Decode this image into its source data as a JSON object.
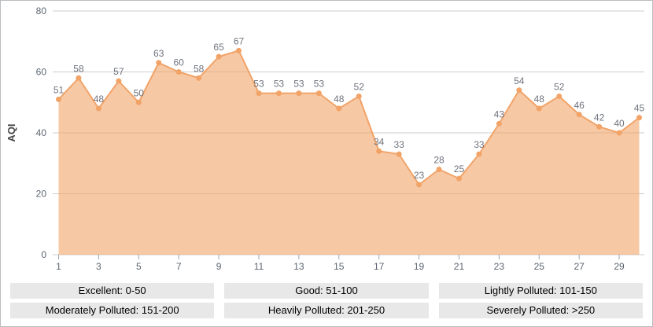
{
  "chart_data": {
    "type": "area",
    "title": "",
    "ylabel": "AQI",
    "xlabel": "",
    "x": [
      1,
      2,
      3,
      4,
      5,
      6,
      7,
      8,
      9,
      10,
      11,
      12,
      13,
      14,
      15,
      16,
      17,
      18,
      19,
      20,
      21,
      22,
      23,
      24,
      25,
      26,
      27,
      28,
      29,
      30
    ],
    "values": [
      51,
      58,
      48,
      57,
      50,
      63,
      60,
      58,
      65,
      67,
      53,
      53,
      53,
      53,
      48,
      52,
      34,
      33,
      23,
      28,
      25,
      33,
      43,
      54,
      48,
      52,
      46,
      42,
      40,
      45
    ],
    "x_axis_ticks": [
      1,
      3,
      5,
      7,
      9,
      11,
      13,
      15,
      17,
      19,
      21,
      23,
      25,
      27,
      29
    ],
    "y_ticks": [
      0,
      20,
      40,
      60,
      80
    ],
    "ylim": [
      0,
      80
    ],
    "grid": true,
    "legend_position": "none",
    "series_name": "AQI",
    "colors": {
      "line": "#f1a368",
      "fill": "rgba(241,163,104,0.6)",
      "gridline": "#cccccc",
      "axis_tick": "#9aa6b0",
      "axis_label": "#5b6570",
      "data_label": "#6f737d",
      "ylabel_color": "#454545"
    }
  },
  "legend": {
    "items": [
      {
        "label": "Excellent: 0-50"
      },
      {
        "label": "Good: 51-100"
      },
      {
        "label": "Lightly Polluted: 101-150"
      },
      {
        "label": "Moderately Polluted: 151-200"
      },
      {
        "label": "Heavily Polluted: 201-250"
      },
      {
        "label": "Severely Polluted: >250"
      }
    ],
    "background": "#e8e8e8"
  }
}
